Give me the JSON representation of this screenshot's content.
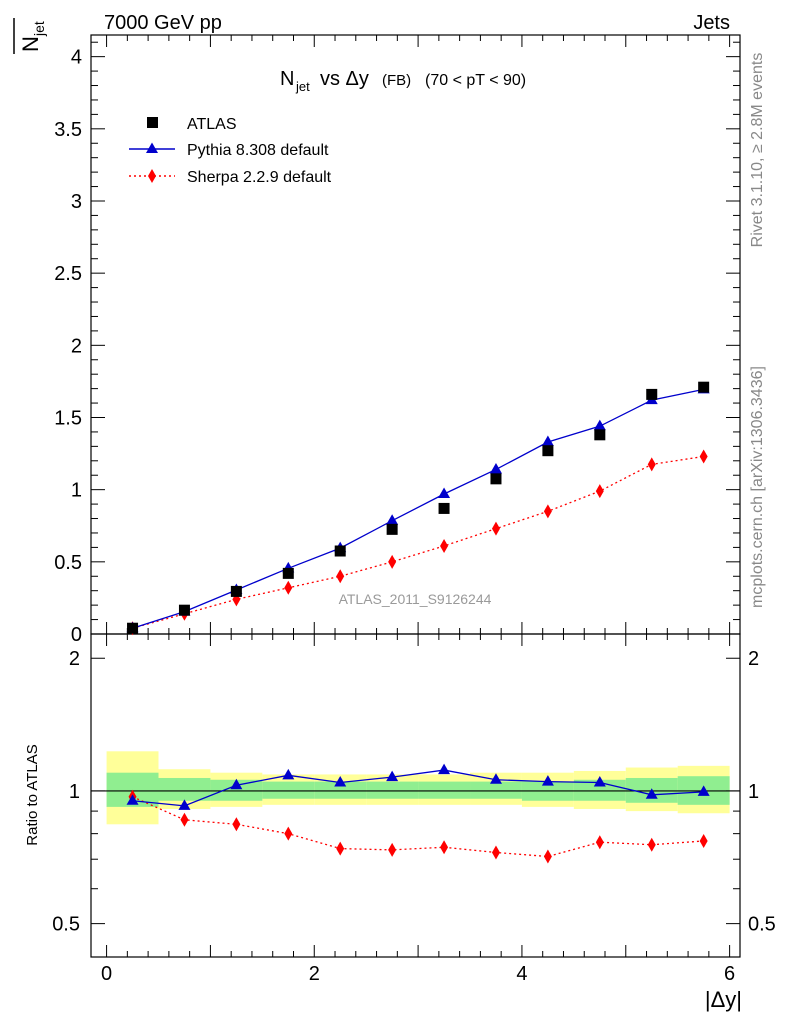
{
  "header": {
    "left": "7000 GeV pp",
    "right": "Jets"
  },
  "side_labels": {
    "rivet": "Rivet 3.1.10, ≥ 2.8M events",
    "mcplots": "mcplots.cern.ch [arXiv:1306.3436]"
  },
  "chart_data": [
    {
      "type": "scatter",
      "title": "N_jet vs Δy (FB) (70 < pT < 90)",
      "title_parts": {
        "n": "N",
        "n_sub": "jet",
        "vs": "vs Δy",
        "fb": "(FB)",
        "range": "(70 < pT <  90)"
      },
      "ylabel": "N_jet",
      "ylabel_parts": {
        "n": "N",
        "sub": "jet"
      },
      "xlim": [
        -0.15,
        6.1
      ],
      "ylim": [
        0,
        4.15
      ],
      "yticks": [
        0,
        0.5,
        1,
        1.5,
        2,
        2.5,
        3,
        3.5,
        4
      ],
      "ytick_labels": [
        "0",
        "0.5",
        "1",
        "1.5",
        "2",
        "2.5",
        "3",
        "3.5",
        "4"
      ],
      "watermark": "ATLAS_2011_S9126244",
      "legend_position": "top-left",
      "x": [
        0.25,
        0.75,
        1.25,
        1.75,
        2.25,
        2.75,
        3.25,
        3.75,
        4.25,
        4.75,
        5.25,
        5.75
      ],
      "series": [
        {
          "name": "ATLAS",
          "marker": "square",
          "color": "#000000",
          "values": [
            0.04,
            0.165,
            0.295,
            0.42,
            0.575,
            0.725,
            0.87,
            1.075,
            1.27,
            1.38,
            1.66,
            1.71
          ]
        },
        {
          "name": "Pythia 8.308 default",
          "marker": "triangle",
          "color": "#0000cc",
          "line": "solid",
          "values": [
            0.04,
            0.155,
            0.305,
            0.455,
            0.595,
            0.785,
            0.97,
            1.14,
            1.33,
            1.44,
            1.62,
            1.695
          ]
        },
        {
          "name": "Sherpa 2.2.9 default",
          "marker": "diamond",
          "color": "#ff0000",
          "line": "dotted",
          "values": [
            0.04,
            0.14,
            0.24,
            0.32,
            0.4,
            0.5,
            0.61,
            0.73,
            0.85,
            0.99,
            1.175,
            1.23
          ]
        }
      ]
    },
    {
      "type": "scatter",
      "ylabel": "Ratio to ATLAS",
      "xlabel": "|Δy|",
      "xlim": [
        -0.15,
        6.1
      ],
      "ylim": [
        0.42,
        2.27
      ],
      "log_y": true,
      "yticks": [
        0.5,
        1,
        2
      ],
      "ytick_labels": [
        "0.5",
        "1",
        "2"
      ],
      "xticks": [
        0,
        2,
        4,
        6
      ],
      "xtick_labels": [
        "0",
        "2",
        "4",
        "6"
      ],
      "reference_line": 1,
      "x": [
        0.25,
        0.75,
        1.25,
        1.75,
        2.25,
        2.75,
        3.25,
        3.75,
        4.25,
        4.75,
        5.25,
        5.75
      ],
      "bands": {
        "edges": [
          0,
          0.5,
          1.0,
          1.5,
          2.0,
          2.5,
          3.0,
          3.5,
          4.0,
          4.5,
          5.0,
          5.5,
          6.0
        ],
        "inner": {
          "color": "#90ee90",
          "low": [
            0.92,
            0.95,
            0.95,
            0.96,
            0.96,
            0.96,
            0.96,
            0.96,
            0.95,
            0.95,
            0.94,
            0.93
          ],
          "high": [
            1.1,
            1.07,
            1.06,
            1.05,
            1.05,
            1.05,
            1.05,
            1.05,
            1.05,
            1.06,
            1.07,
            1.08
          ]
        },
        "outer": {
          "color": "#ffff99",
          "low": [
            0.84,
            0.91,
            0.92,
            0.93,
            0.93,
            0.93,
            0.93,
            0.93,
            0.92,
            0.91,
            0.9,
            0.89
          ],
          "high": [
            1.23,
            1.12,
            1.1,
            1.09,
            1.09,
            1.09,
            1.09,
            1.1,
            1.1,
            1.11,
            1.13,
            1.14
          ]
        }
      },
      "series": [
        {
          "name": "Pythia 8.308 default",
          "marker": "triangle",
          "color": "#0000cc",
          "line": "solid",
          "values": [
            0.95,
            0.925,
            1.03,
            1.085,
            1.045,
            1.075,
            1.115,
            1.06,
            1.05,
            1.045,
            0.98,
            0.995
          ]
        },
        {
          "name": "Sherpa 2.2.9 default",
          "marker": "diamond",
          "color": "#ff0000",
          "line": "dotted",
          "values": [
            0.97,
            0.86,
            0.84,
            0.8,
            0.74,
            0.735,
            0.745,
            0.725,
            0.71,
            0.765,
            0.755,
            0.77
          ]
        }
      ]
    }
  ]
}
